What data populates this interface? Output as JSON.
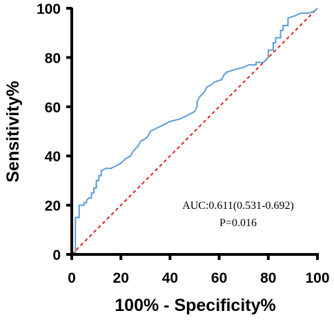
{
  "chart_data": {
    "type": "line",
    "xlabel": "100% - Specificity%",
    "ylabel": "Sensitivity%",
    "xlim": [
      0,
      100
    ],
    "ylim": [
      0,
      100
    ],
    "xticks": [
      "0",
      "20",
      "40",
      "60",
      "80",
      "100"
    ],
    "yticks": [
      "0",
      "20",
      "40",
      "60",
      "80",
      "100"
    ],
    "annotations": [
      "AUC:0.611(0.531-0.692)",
      "P=0.016"
    ],
    "colors": {
      "roc": "#5b9bd5",
      "reference": "#e02020"
    },
    "grid": false,
    "series": [
      {
        "x": [
          0,
          1,
          1.5,
          1.5,
          3,
          3,
          5,
          5,
          6,
          6,
          7,
          8,
          8,
          9,
          9,
          10,
          10,
          11,
          11,
          12,
          12,
          14,
          16,
          18,
          20,
          22,
          24,
          25,
          27,
          28,
          30,
          31,
          32,
          34,
          36,
          38,
          40,
          42,
          44,
          46,
          48,
          49,
          50,
          51,
          51,
          52,
          54,
          55,
          57,
          58,
          61,
          62,
          63,
          66,
          70,
          72,
          75,
          75,
          78,
          80,
          80,
          82,
          82,
          83,
          83,
          85,
          85,
          86,
          86,
          88,
          88,
          91,
          93,
          96,
          98,
          99,
          100
        ],
        "y": [
          0,
          0,
          1,
          15,
          15,
          20,
          20,
          21,
          21,
          22,
          23,
          23,
          25,
          25,
          27,
          27,
          30,
          30,
          32,
          32,
          34,
          35,
          35,
          36,
          37,
          39,
          40,
          42,
          44,
          46,
          47,
          48,
          50,
          51,
          52,
          53,
          54,
          54.5,
          55,
          56,
          57,
          57.5,
          58,
          60,
          62,
          64,
          66,
          68,
          69,
          70,
          71,
          73,
          74,
          75,
          76,
          77,
          77,
          78,
          78,
          80,
          83,
          83,
          86,
          86,
          88,
          88,
          91,
          91,
          93,
          93,
          96,
          97,
          98,
          98,
          98.5,
          99,
          100
        ]
      },
      {
        "x": [
          0,
          100
        ],
        "y": [
          0,
          100
        ]
      }
    ]
  }
}
